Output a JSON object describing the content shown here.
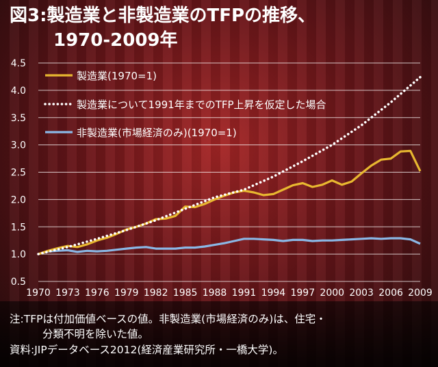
{
  "title_line1": "図3:製造業と非製造業のTFPの推移、",
  "title_line2": "1970-2009年",
  "notes": {
    "line1": "注:TFPは付加価値ベースの値。非製造業(市場経済のみ)は、住宅・",
    "line2": "分類不明を除いた値。",
    "line3": "資料:JIPデータベース2012(経済産業研究所・一橋大学)。"
  },
  "colors": {
    "manufacturing": "#e8b830",
    "hypothetical": "#ffffff",
    "nonmanufacturing": "#8ab8e6"
  },
  "chart_data": {
    "type": "line",
    "title": "図3:製造業と非製造業のTFPの推移、1970-2009年",
    "xlabel": "",
    "ylabel": "",
    "xlim": [
      1970,
      2009
    ],
    "ylim": [
      0.5,
      4.5
    ],
    "x_ticks": [
      "1970",
      "1973",
      "1976",
      "1979",
      "1982",
      "1985",
      "1988",
      "1991",
      "1994",
      "1997",
      "2000",
      "2003",
      "2006",
      "2009"
    ],
    "y_ticks": [
      "0.5",
      "1.0",
      "1.5",
      "2.0",
      "2.5",
      "3.0",
      "3.5",
      "4.0",
      "4.5"
    ],
    "grid": true,
    "legend_position": "top-left",
    "series": [
      {
        "name": "製造業(1970=1)",
        "style": "solid",
        "x": [
          1970,
          1971,
          1972,
          1973,
          1974,
          1975,
          1976,
          1977,
          1978,
          1979,
          1980,
          1981,
          1982,
          1983,
          1984,
          1985,
          1986,
          1987,
          1988,
          1989,
          1990,
          1991,
          1992,
          1993,
          1994,
          1995,
          1996,
          1997,
          1998,
          1999,
          2000,
          2001,
          2002,
          2003,
          2004,
          2005,
          2006,
          2007,
          2008,
          2009
        ],
        "values": [
          1.0,
          1.06,
          1.11,
          1.15,
          1.13,
          1.18,
          1.25,
          1.3,
          1.37,
          1.45,
          1.5,
          1.56,
          1.64,
          1.65,
          1.7,
          1.87,
          1.86,
          1.92,
          2.0,
          2.07,
          2.13,
          2.16,
          2.13,
          2.08,
          2.1,
          2.18,
          2.26,
          2.3,
          2.23,
          2.27,
          2.35,
          2.27,
          2.33,
          2.48,
          2.62,
          2.73,
          2.75,
          2.88,
          2.89,
          2.52
        ]
      },
      {
        "name": "製造業について1991年までのTFP上昇を仮定した場合",
        "style": "dotted",
        "x": [
          1970,
          1973,
          1976,
          1979,
          1982,
          1985,
          1988,
          1991,
          1994,
          1997,
          2000,
          2003,
          2006,
          2009
        ],
        "values": [
          1.0,
          1.13,
          1.28,
          1.44,
          1.62,
          1.83,
          2.04,
          2.18,
          2.42,
          2.7,
          3.0,
          3.36,
          3.78,
          4.24
        ]
      },
      {
        "name": "非製造業(市場経済のみ)(1970=1)",
        "style": "solid",
        "x": [
          1970,
          1971,
          1972,
          1973,
          1974,
          1975,
          1976,
          1977,
          1978,
          1979,
          1980,
          1981,
          1982,
          1983,
          1984,
          1985,
          1986,
          1987,
          1988,
          1989,
          1990,
          1991,
          1992,
          1993,
          1994,
          1995,
          1996,
          1997,
          1998,
          1999,
          2000,
          2001,
          2002,
          2003,
          2004,
          2005,
          2006,
          2007,
          2008,
          2009
        ],
        "values": [
          1.0,
          1.05,
          1.06,
          1.07,
          1.04,
          1.06,
          1.05,
          1.06,
          1.08,
          1.1,
          1.12,
          1.13,
          1.1,
          1.1,
          1.1,
          1.12,
          1.12,
          1.14,
          1.17,
          1.2,
          1.24,
          1.28,
          1.28,
          1.27,
          1.26,
          1.24,
          1.26,
          1.26,
          1.24,
          1.25,
          1.25,
          1.26,
          1.27,
          1.28,
          1.29,
          1.28,
          1.29,
          1.29,
          1.27,
          1.19
        ]
      }
    ]
  }
}
